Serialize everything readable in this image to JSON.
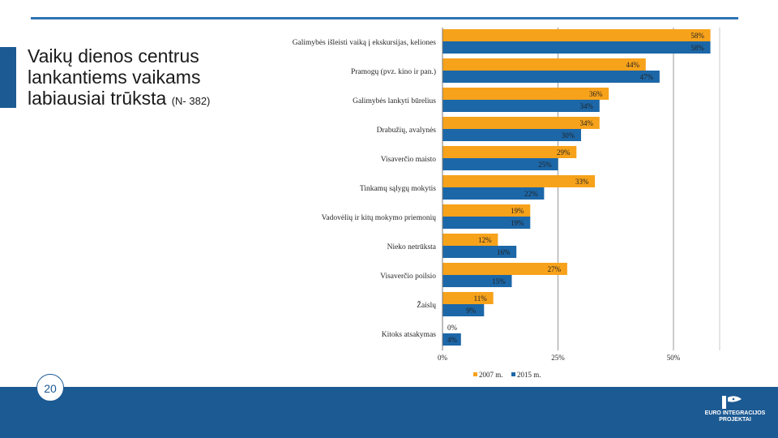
{
  "slide": {
    "title_main": "Vaikų dienos centrus lankantiems vaikams labiausiai trūksta",
    "title_note": "(N- 382)",
    "page_number": "20"
  },
  "logo": {
    "line1": "EURO INTEGRACIJOS",
    "line2": "PROJEKTAI"
  },
  "colors": {
    "series_2007": "#f7a21b",
    "series_2015": "#1c67a8",
    "accent": "#2e74b5",
    "footer": "#1c5a93"
  },
  "chart_data": {
    "type": "bar",
    "orientation": "horizontal",
    "categories": [
      "Galimybės išleisti vaiką į ekskursijas, keliones",
      "Pramogų (pvz. kino ir pan.)",
      "Galimybės lankyti būrelius",
      "Drabužių, avalynės",
      "Visaverčio maisto",
      "Tinkamų sąlygų mokytis",
      "Vadovėlių ir kitų mokymo priemonių",
      "Nieko netrūksta",
      "Visaverčio poilsio",
      "Žaislų",
      "Kitoks atsakymas"
    ],
    "series": [
      {
        "name": "2007 m.",
        "values": [
          58,
          44,
          36,
          34,
          29,
          33,
          19,
          12,
          27,
          11,
          0
        ],
        "labels": [
          "58%",
          "44%",
          "36%",
          "34%",
          "29%",
          "33%",
          "19%",
          "12%",
          "27%",
          "11%",
          "0%"
        ]
      },
      {
        "name": "2015 m.",
        "values": [
          58,
          47,
          34,
          30,
          25,
          22,
          19,
          16,
          15,
          9,
          4
        ],
        "labels": [
          "58%",
          "47%",
          "34%",
          "30%",
          "25%",
          "22%",
          "19%",
          "16%",
          "15%",
          "9%",
          "4%"
        ]
      }
    ],
    "xlim": [
      0,
      60
    ],
    "xticks": [
      0,
      25,
      50
    ],
    "xtick_labels": [
      "0%",
      "25%",
      "50%"
    ],
    "grid": true,
    "legend": "bottom"
  }
}
